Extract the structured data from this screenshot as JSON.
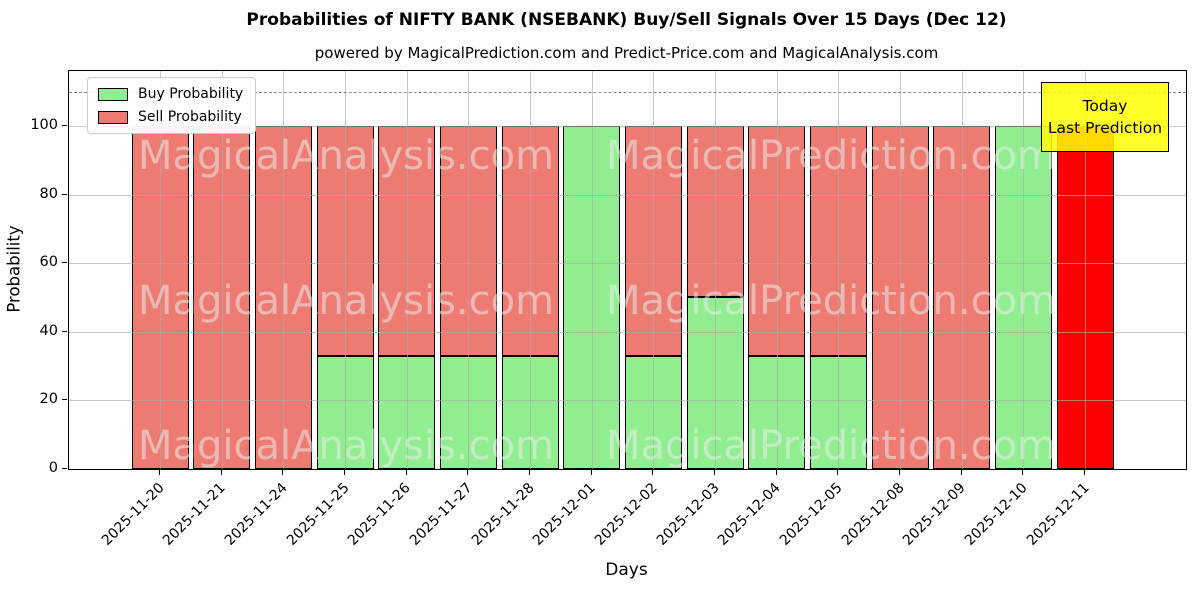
{
  "title": "Probabilities of NIFTY BANK (NSEBANK) Buy/Sell Signals Over 15 Days (Dec 12)",
  "subtitle": "powered by MagicalPrediction.com and Predict-Price.com and MagicalAnalysis.com",
  "legend": {
    "items": [
      {
        "label": "Buy Probability",
        "color": "#90ee90"
      },
      {
        "label": "Sell Probability",
        "color": "#ee7b72"
      }
    ]
  },
  "annotation": {
    "lines": [
      "Today",
      "Last Prediction"
    ],
    "bg_color": "#ffff00"
  },
  "watermarks": {
    "left_text": "MagicalAnalysis.com",
    "right_text": "MagicalPrediction.com"
  },
  "chart_data": {
    "type": "bar",
    "stacked": true,
    "title": "Probabilities of NIFTY BANK (NSEBANK) Buy/Sell Signals Over 15 Days (Dec 12)",
    "xlabel": "Days",
    "ylabel": "Probability",
    "categories": [
      "2025-11-20",
      "2025-11-21",
      "2025-11-24",
      "2025-11-25",
      "2025-11-26",
      "2025-11-27",
      "2025-11-28",
      "2025-12-01",
      "2025-12-02",
      "2025-12-03",
      "2025-12-04",
      "2025-12-05",
      "2025-12-08",
      "2025-12-09",
      "2025-12-10",
      "2025-12-11"
    ],
    "series": [
      {
        "name": "Buy Probability",
        "color": "#90ee90",
        "values": [
          0,
          0,
          0,
          33,
          33,
          33,
          33,
          100,
          33,
          50,
          33,
          33,
          0,
          0,
          100,
          0
        ]
      },
      {
        "name": "Sell Probability",
        "color": "#ee7b72",
        "values": [
          100,
          100,
          100,
          67,
          67,
          67,
          67,
          0,
          67,
          50,
          67,
          67,
          100,
          100,
          0,
          100
        ]
      }
    ],
    "today_index": 15,
    "today_sell_color": "#ff0000",
    "yticks": [
      0,
      20,
      40,
      60,
      80,
      100
    ],
    "ylim": [
      0,
      116
    ],
    "dashed_line_y": 110,
    "grid": true,
    "legend_position": "upper left"
  }
}
